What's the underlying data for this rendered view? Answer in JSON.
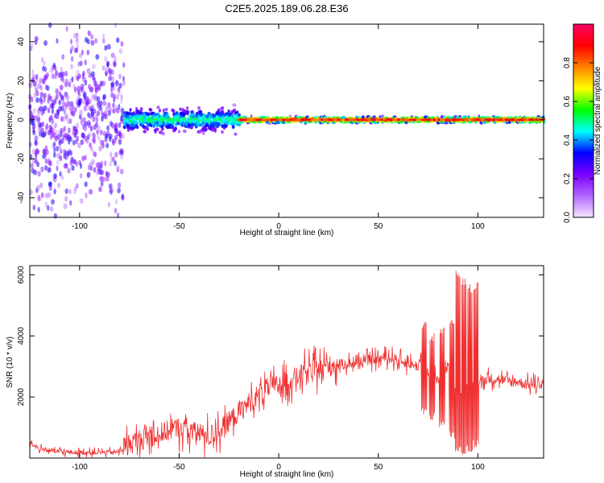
{
  "title": "C2E5.2025.189.06.28.E36",
  "chart_data": [
    {
      "type": "heatmap",
      "title": "",
      "xlabel": "Height of straight line (km)",
      "ylabel": "Frequency (Hz)",
      "xlim": [
        -125,
        133
      ],
      "ylim": [
        -50,
        49
      ],
      "x_ticks": [
        -100,
        -50,
        0,
        50,
        100
      ],
      "y_ticks": [
        -40,
        -20,
        0,
        20,
        40
      ],
      "colorbar": {
        "label": "Normalized spectral amplitude",
        "range": [
          0,
          1
        ],
        "ticks": [
          0.0,
          0.2,
          0.4,
          0.6,
          0.8
        ],
        "colors": [
          "#f5e6ff",
          "#b266ff",
          "#7a00ff",
          "#0000ff",
          "#00ffff",
          "#00ff00",
          "#ffff00",
          "#ff8000",
          "#ff0000",
          "#ff0066"
        ]
      },
      "approx_ridge": {
        "frequency_hz": 0,
        "segments": [
          {
            "x_from": -125,
            "x_to": -78,
            "spread_hz": 50,
            "amplitude": 0.15
          },
          {
            "x_from": -78,
            "x_to": -20,
            "spread_hz": 8,
            "amplitude": 0.45
          },
          {
            "x_from": -20,
            "x_to": 133,
            "spread_hz": 2,
            "amplitude": 0.85
          }
        ]
      }
    },
    {
      "type": "line",
      "title": "",
      "xlabel": "Height of straight line (km)",
      "ylabel": "SNR (10 * v/v)",
      "xlim": [
        -125,
        133
      ],
      "ylim": [
        0,
        6300
      ],
      "x_ticks": [
        -100,
        -50,
        0,
        50,
        100
      ],
      "y_ticks": [
        2000,
        4000,
        6000
      ],
      "color": "#f03030",
      "series": [
        {
          "x": [
            -125,
            -120,
            -110,
            -100,
            -90,
            -80,
            -77,
            -70,
            -60,
            -50,
            -45,
            -40,
            -35,
            -30,
            -25,
            -20,
            -15,
            -10,
            -5,
            0,
            5,
            10,
            15,
            20,
            25,
            30,
            35,
            40,
            45,
            50,
            55,
            60,
            65,
            70,
            72,
            75,
            80,
            85,
            88,
            90,
            92,
            94,
            96,
            98,
            100,
            105,
            110,
            115,
            120,
            125,
            130,
            133
          ],
          "y": [
            500,
            300,
            200,
            180,
            180,
            200,
            400,
            600,
            800,
            1000,
            900,
            800,
            700,
            900,
            1200,
            1500,
            1800,
            2100,
            2300,
            2400,
            2500,
            2700,
            2800,
            2900,
            3000,
            3050,
            3100,
            3100,
            3200,
            3250,
            3300,
            3200,
            3100,
            3000,
            3500,
            2800,
            2600,
            3000,
            2500,
            3200,
            2000,
            3000,
            1500,
            2600,
            2500,
            2600,
            2600,
            2500,
            2500,
            2400,
            2400,
            2500
          ],
          "spikes": [
            {
              "x": 73,
              "y_low": 1400,
              "y_high": 4500
            },
            {
              "x": 77,
              "y_low": 1200,
              "y_high": 4100
            },
            {
              "x": 82,
              "y_low": 1000,
              "y_high": 4300
            },
            {
              "x": 87,
              "y_low": 600,
              "y_high": 4600
            },
            {
              "x": 90,
              "y_low": 200,
              "y_high": 6200
            },
            {
              "x": 93,
              "y_low": 100,
              "y_high": 5900
            },
            {
              "x": 96,
              "y_low": 200,
              "y_high": 5700
            },
            {
              "x": 99,
              "y_low": 300,
              "y_high": 5800
            }
          ]
        }
      ]
    }
  ]
}
